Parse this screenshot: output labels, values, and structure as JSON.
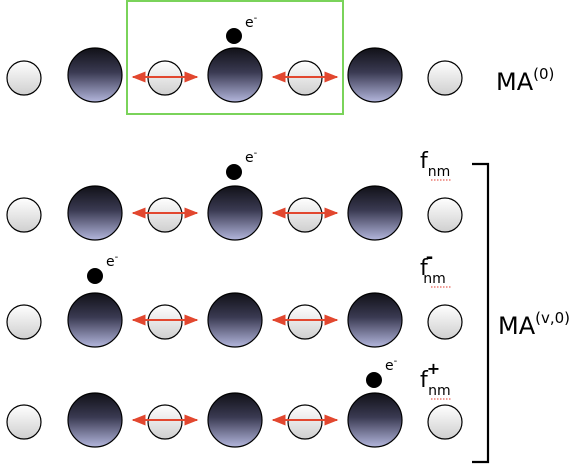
{
  "labels": {
    "electron": "e",
    "electron_sup": "-",
    "ma0_base": "MA",
    "ma0_sup": "(0)",
    "mav_base": "MA",
    "mav_sup": "(v,0)",
    "f_base": "f",
    "f_sub": "nm",
    "f_minus_sup": "-",
    "f_plus_sup": "+"
  },
  "colors": {
    "highlight_box": "#7ad35a",
    "arrow": "#e2472f",
    "electron": "#000000",
    "bracket": "#000000"
  }
}
